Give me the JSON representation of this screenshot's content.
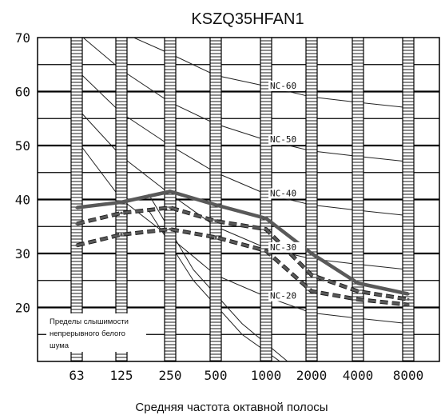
{
  "chart_data": {
    "type": "line",
    "title": "KSZQ35HFAN1",
    "xlabel": "Средняя частота октавной полосы",
    "ylabel": "",
    "x": [
      "63",
      "125",
      "250",
      "500",
      "1000",
      "2000",
      "4000",
      "8000"
    ],
    "ylim": [
      10,
      70
    ],
    "yticks": [
      "20",
      "30",
      "40",
      "50",
      "60",
      "70"
    ],
    "grid": true,
    "series": [
      {
        "style": "solid-thick",
        "values": [
          38.5,
          39.5,
          41.5,
          39,
          36.5,
          30,
          24.5,
          22.5
        ]
      },
      {
        "style": "dashed-upper",
        "values": [
          35.5,
          37.5,
          38.5,
          36,
          34.5,
          26,
          23,
          21.5
        ]
      },
      {
        "style": "dashed-lower",
        "values": [
          31.5,
          33.5,
          34.5,
          33,
          30.5,
          23,
          21.5,
          20.5
        ]
      }
    ],
    "nc_curves": [
      {
        "label": "NC-60",
        "values": [
          77,
          71,
          67,
          63,
          61,
          59,
          58,
          57
        ]
      },
      {
        "label": "NC-50",
        "values": [
          71,
          64,
          58,
          54,
          51,
          49,
          48,
          47
        ]
      },
      {
        "label": "NC-40",
        "values": [
          64,
          56,
          50,
          45,
          41,
          39,
          38,
          37
        ]
      },
      {
        "label": "NC-30",
        "values": [
          57,
          48,
          41,
          35,
          31,
          29,
          28,
          27
        ]
      },
      {
        "label": "NC-20",
        "values": [
          51,
          40,
          33,
          26,
          22,
          19,
          18,
          17
        ]
      }
    ],
    "threshold_note": [
      "Пределы слышимости",
      "непрерывного белого",
      "шума"
    ]
  },
  "colors": {
    "series": "#595959",
    "grid": "#000000",
    "nc": "#222222",
    "text": "#111111"
  }
}
